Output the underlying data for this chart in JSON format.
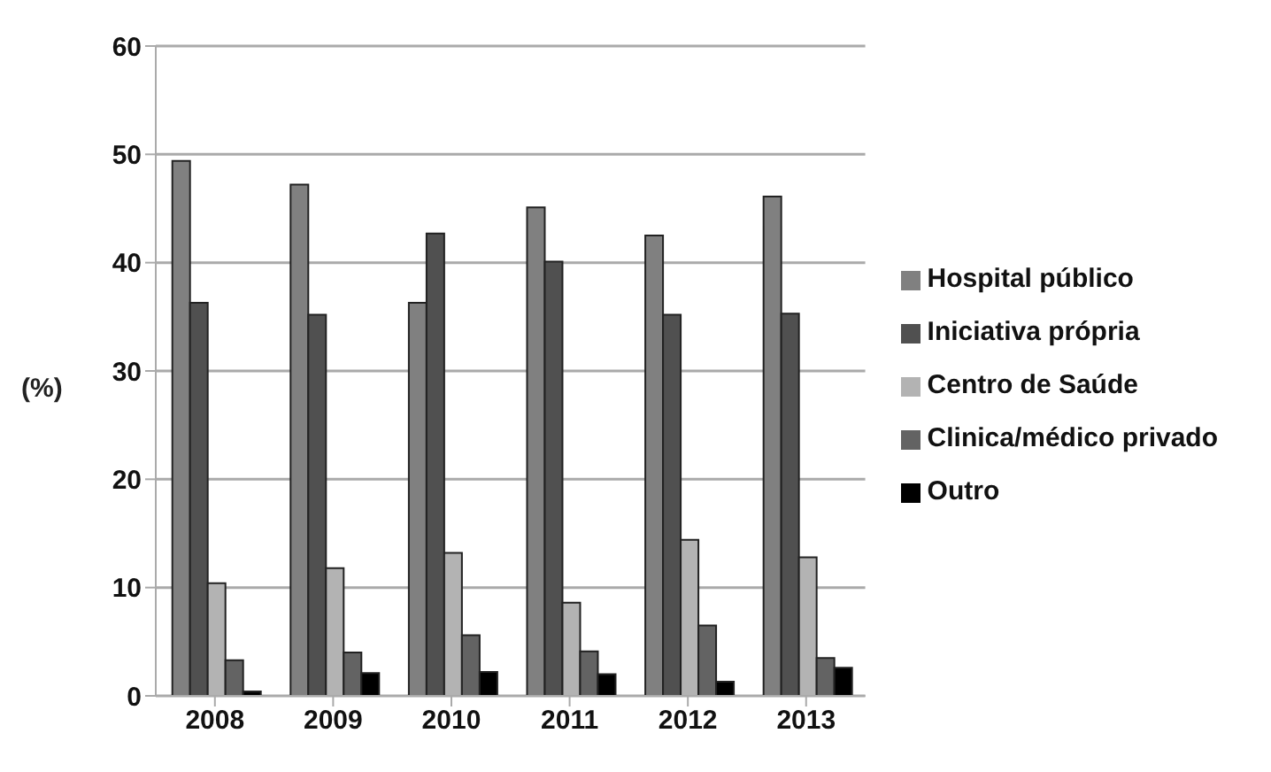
{
  "chart_data": {
    "type": "bar",
    "ylabel": "(%)",
    "categories": [
      "2008",
      "2009",
      "2010",
      "2011",
      "2012",
      "2013"
    ],
    "series": [
      {
        "name": "Hospital público",
        "color": "#808080",
        "values": [
          49.4,
          47.2,
          36.3,
          45.1,
          42.5,
          46.1
        ]
      },
      {
        "name": "Iniciativa própria",
        "color": "#505050",
        "values": [
          36.3,
          35.2,
          42.7,
          40.1,
          35.2,
          35.3
        ]
      },
      {
        "name": "Centro de Saúde",
        "color": "#b3b3b3",
        "values": [
          10.4,
          11.8,
          13.2,
          8.6,
          14.4,
          12.8
        ]
      },
      {
        "name": "Clinica/médico privado",
        "color": "#636363",
        "values": [
          3.3,
          4.0,
          5.6,
          4.1,
          6.5,
          3.5
        ]
      },
      {
        "name": "Outro",
        "color": "#000000",
        "values": [
          0.4,
          2.1,
          2.2,
          2.0,
          1.3,
          2.6
        ]
      }
    ],
    "ylim": [
      0,
      60
    ],
    "yticks": [
      0,
      10,
      20,
      30,
      40,
      50,
      60
    ],
    "grid": "y",
    "legend": "right"
  }
}
